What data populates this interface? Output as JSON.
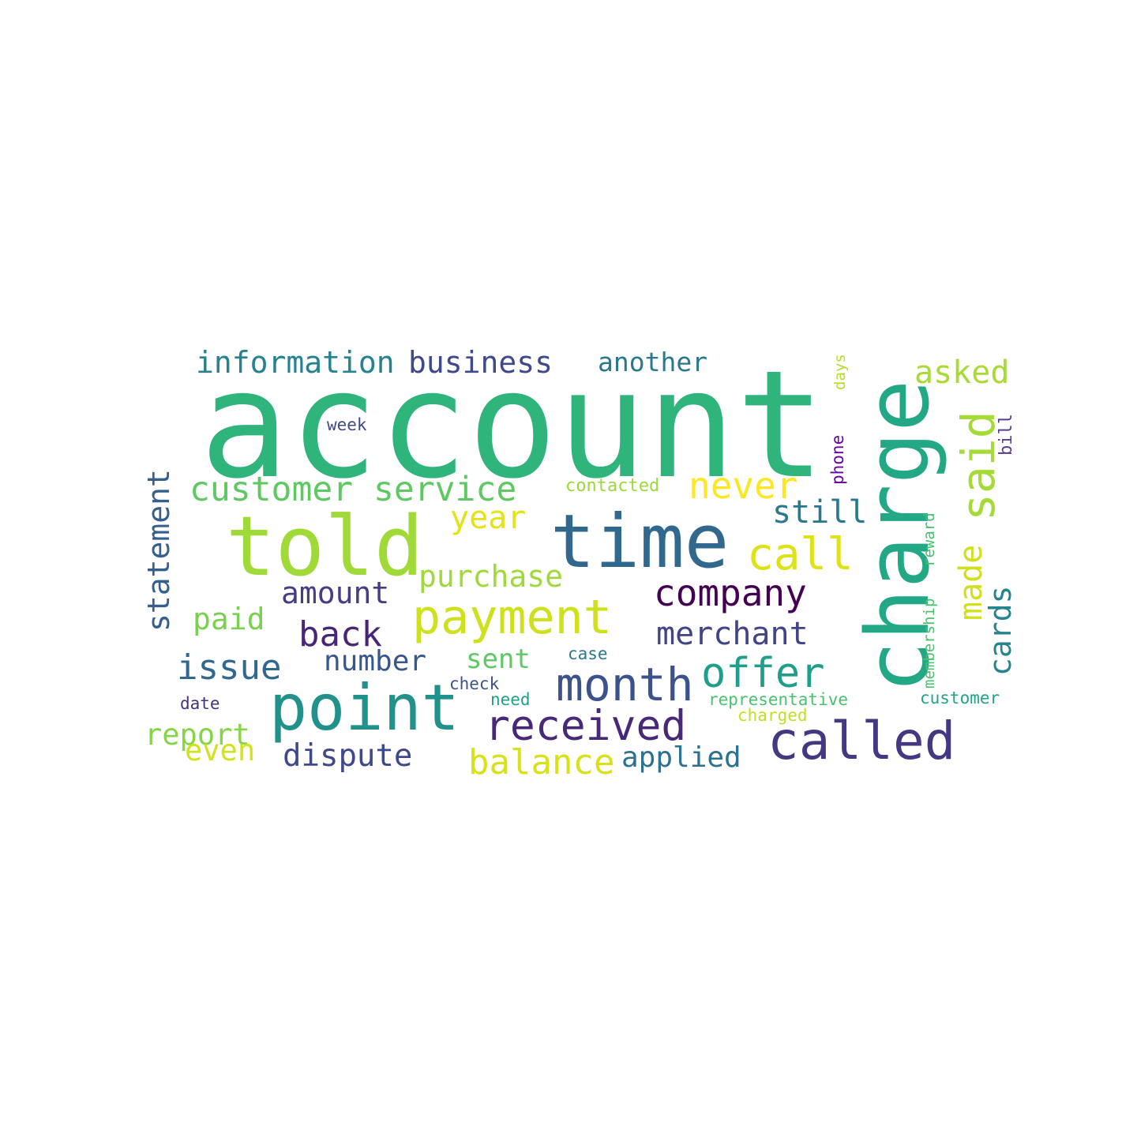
{
  "wordcloud": {
    "words": [
      {
        "text": "account",
        "color": "#2fb47c"
      },
      {
        "text": "charge",
        "color": "#22a884"
      },
      {
        "text": "told",
        "color": "#a0da39"
      },
      {
        "text": "time",
        "color": "#31688e"
      },
      {
        "text": "point",
        "color": "#21918c"
      },
      {
        "text": "called",
        "color": "#453781"
      },
      {
        "text": "payment",
        "color": "#cde11d"
      },
      {
        "text": "said",
        "color": "#a5db36"
      },
      {
        "text": "month",
        "color": "#3b528b"
      },
      {
        "text": "received",
        "color": "#482878"
      },
      {
        "text": "call",
        "color": "#dde318"
      },
      {
        "text": "company",
        "color": "#440154"
      },
      {
        "text": "offer",
        "color": "#1f9e89"
      },
      {
        "text": "customer service",
        "color": "#5ec962"
      },
      {
        "text": "never",
        "color": "#fde725"
      },
      {
        "text": "balance",
        "color": "#d8e219"
      },
      {
        "text": "information",
        "color": "#26828e"
      },
      {
        "text": "business",
        "color": "#3e4a89"
      },
      {
        "text": "issue",
        "color": "#31688e"
      },
      {
        "text": "back",
        "color": "#482677"
      },
      {
        "text": "merchant",
        "color": "#414487"
      },
      {
        "text": "year",
        "color": "#e2e418"
      },
      {
        "text": "asked",
        "color": "#a8db34"
      },
      {
        "text": "statement",
        "color": "#35608d"
      },
      {
        "text": "dispute",
        "color": "#3e4989"
      },
      {
        "text": "amount",
        "color": "#433e85"
      },
      {
        "text": "purchase",
        "color": "#9fda3a"
      },
      {
        "text": "made",
        "color": "#d0e11c"
      },
      {
        "text": "still",
        "color": "#2a788e"
      },
      {
        "text": "cards",
        "color": "#25848e"
      },
      {
        "text": "paid",
        "color": "#7ad151"
      },
      {
        "text": "number",
        "color": "#38588c"
      },
      {
        "text": "applied",
        "color": "#2c728e"
      },
      {
        "text": "another",
        "color": "#2a788e"
      },
      {
        "text": "report",
        "color": "#86d549"
      },
      {
        "text": "even",
        "color": "#d2e21b"
      },
      {
        "text": "sent",
        "color": "#5ec962"
      },
      {
        "text": "contacted",
        "color": "#9bd93c"
      },
      {
        "text": "representative",
        "color": "#4ac16d"
      },
      {
        "text": "customer",
        "color": "#20a386"
      },
      {
        "text": "charged",
        "color": "#c2df23"
      },
      {
        "text": "membership",
        "color": "#4ac16d"
      },
      {
        "text": "reward",
        "color": "#44bf70"
      },
      {
        "text": "phone",
        "color": "#6a00a8"
      },
      {
        "text": "days",
        "color": "#b5de2b"
      },
      {
        "text": "bill",
        "color": "#5c3c8a"
      },
      {
        "text": "week",
        "color": "#3e4a89"
      },
      {
        "text": "case",
        "color": "#2a788e"
      },
      {
        "text": "check",
        "color": "#3b528b"
      },
      {
        "text": "need",
        "color": "#1fa088"
      },
      {
        "text": "date",
        "color": "#46327e"
      }
    ]
  }
}
